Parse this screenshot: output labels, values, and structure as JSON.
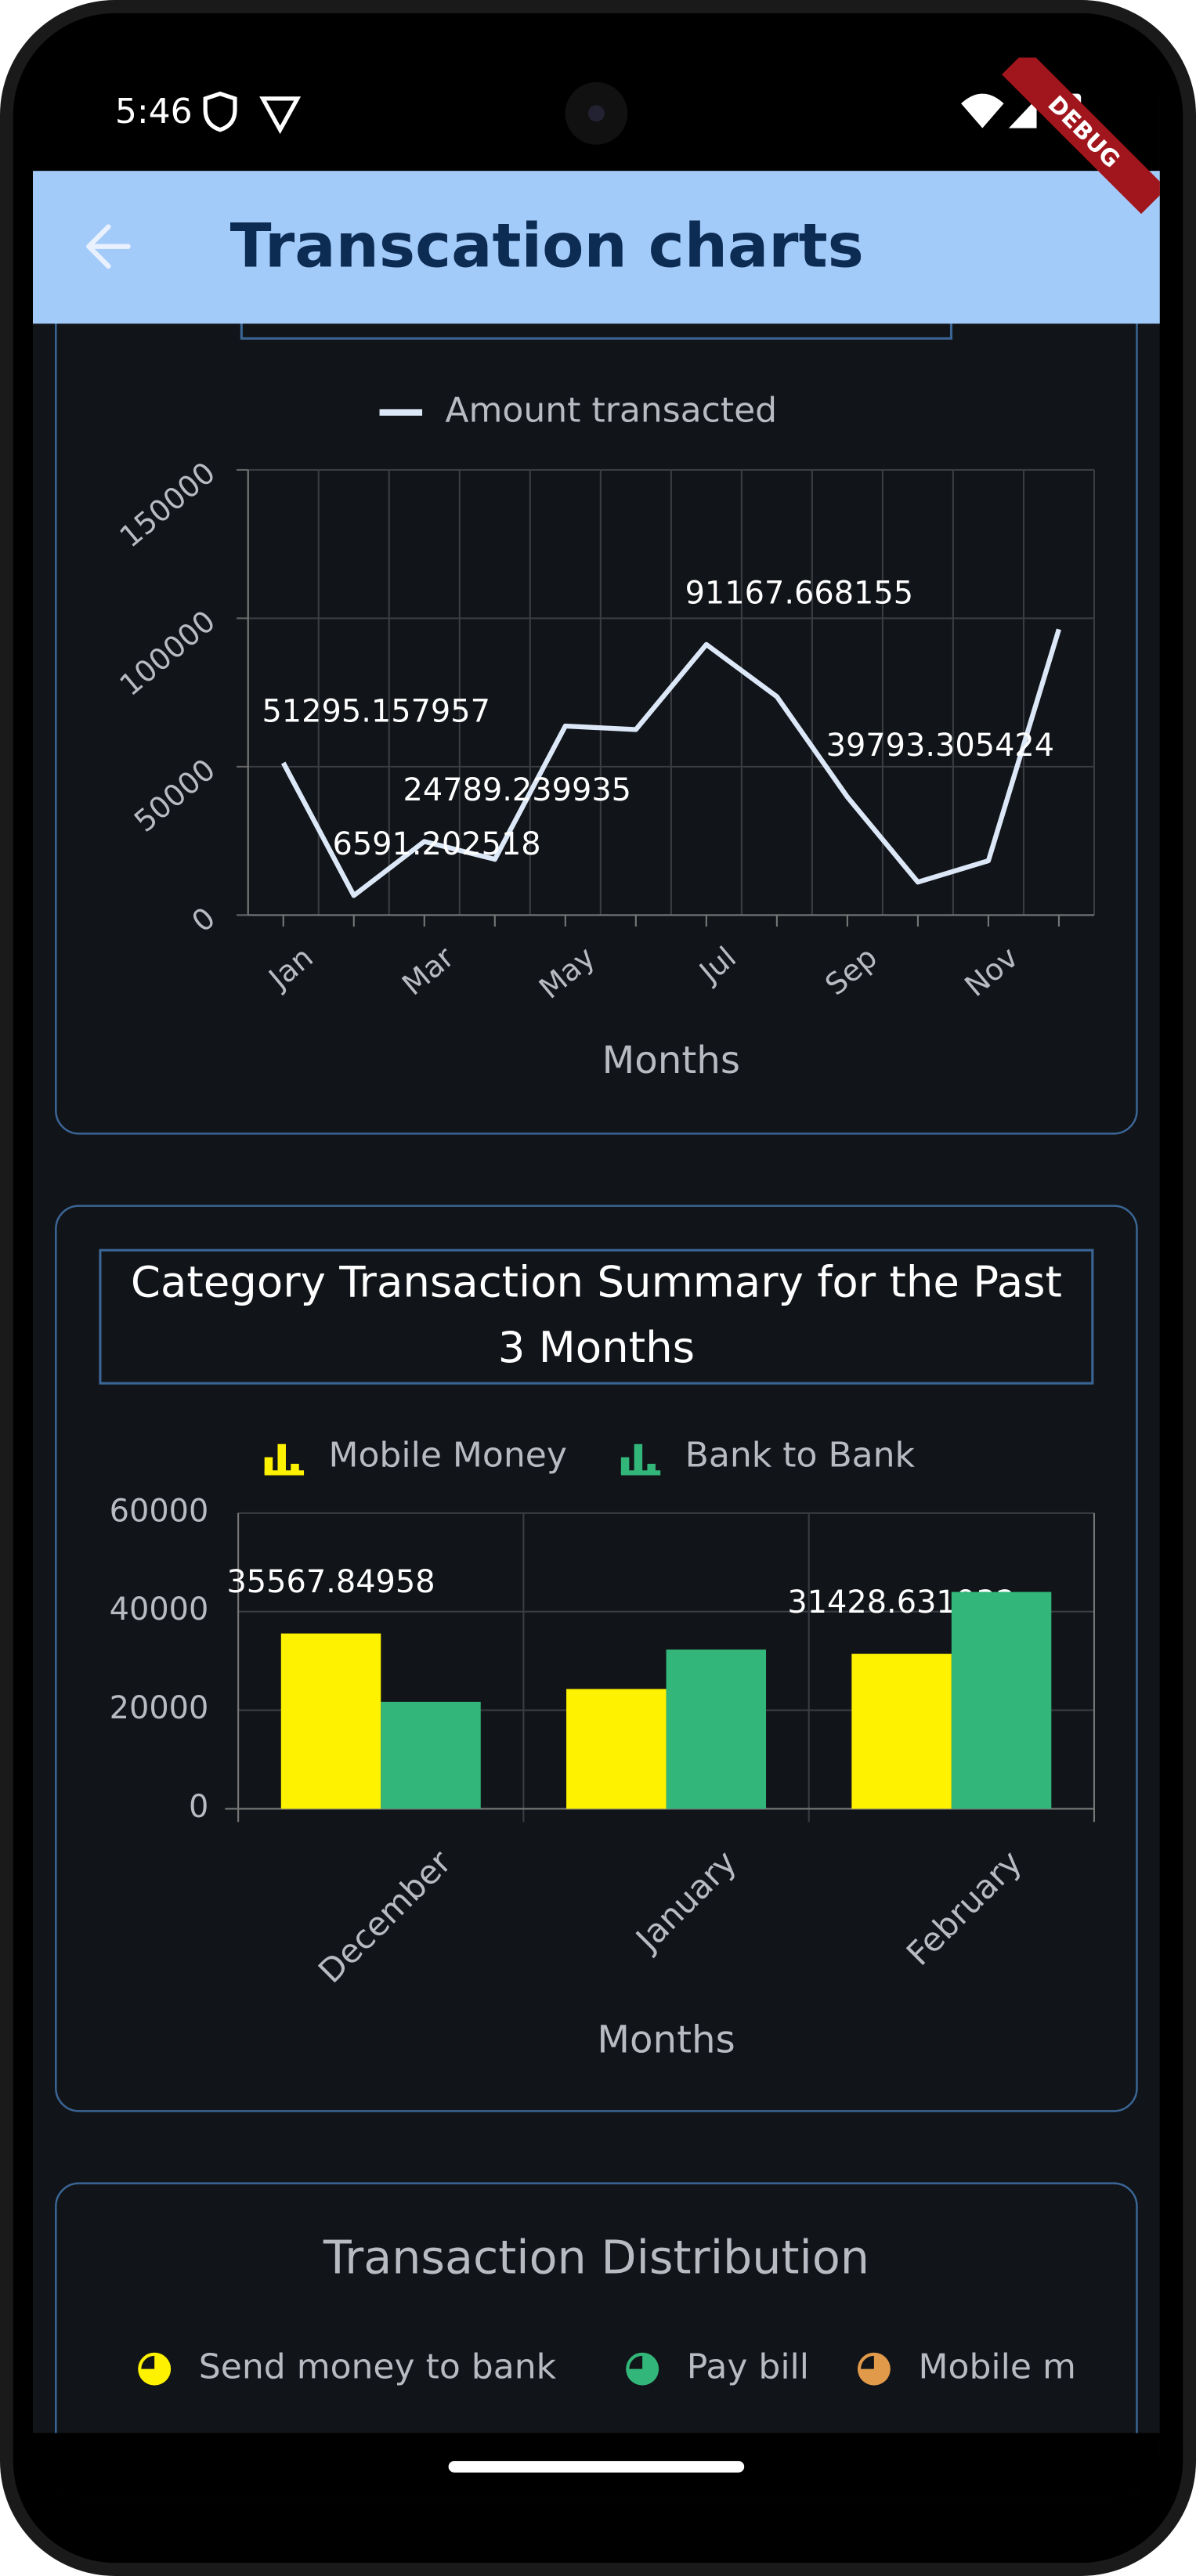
{
  "status_bar": {
    "time": "5:46"
  },
  "debug_banner": "DEBUG",
  "app_bar": {
    "title": "Transcation charts"
  },
  "chart_data": [
    {
      "type": "line",
      "x_label": "Months",
      "categories": [
        "Jan",
        null,
        "Mar",
        null,
        "May",
        null,
        "Jul",
        null,
        "Sep",
        null,
        "Nov",
        null
      ],
      "series": [
        {
          "name": "Amount transacted",
          "color": "#dce8f8",
          "values": [
            51295.157957,
            6591.202518,
            24789.239935,
            18800,
            63700,
            62500,
            91167.668155,
            73600,
            39793.305424,
            11100,
            18300,
            96300
          ],
          "value_labels": [
            "51295.157957",
            "6591.202518",
            "24789.239935",
            null,
            null,
            null,
            "91167.668155",
            null,
            "39793.305424",
            null,
            null,
            null
          ]
        }
      ],
      "ylim": [
        0,
        150000
      ],
      "yticks": [
        0,
        50000,
        100000,
        150000
      ],
      "grid": true
    },
    {
      "type": "bar",
      "title": "Category Transaction Summary for the Past 3 Months",
      "x_label": "Months",
      "categories": [
        "December",
        "January",
        "February"
      ],
      "series": [
        {
          "name": "Mobile Money",
          "color": "#fff200",
          "values": [
            35567.84958,
            24300,
            31428.631932
          ],
          "value_labels": [
            "35567.84958",
            null,
            "31428.631932"
          ]
        },
        {
          "name": "Bank to Bank",
          "color": "#33b679",
          "values": [
            21700,
            32300,
            44000
          ],
          "value_labels": [
            null,
            null,
            null
          ]
        }
      ],
      "ylim": [
        0,
        60000
      ],
      "yticks": [
        0,
        20000,
        40000,
        60000
      ],
      "grid": true
    },
    {
      "type": "pie",
      "title": "Transaction Distribution",
      "series": [
        {
          "name": "Send money to bank",
          "color": "#fff200"
        },
        {
          "name": "Pay bill",
          "color": "#33b679"
        },
        {
          "name": "Mobile m",
          "color": "#e09a4a"
        }
      ]
    }
  ]
}
